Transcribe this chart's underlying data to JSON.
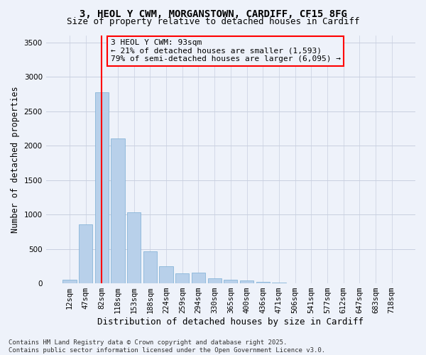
{
  "title_line1": "3, HEOL Y CWM, MORGANSTOWN, CARDIFF, CF15 8FG",
  "title_line2": "Size of property relative to detached houses in Cardiff",
  "xlabel": "Distribution of detached houses by size in Cardiff",
  "ylabel": "Number of detached properties",
  "categories": [
    "12sqm",
    "47sqm",
    "82sqm",
    "118sqm",
    "153sqm",
    "188sqm",
    "224sqm",
    "259sqm",
    "294sqm",
    "330sqm",
    "365sqm",
    "400sqm",
    "436sqm",
    "471sqm",
    "506sqm",
    "541sqm",
    "577sqm",
    "612sqm",
    "647sqm",
    "683sqm",
    "718sqm"
  ],
  "values": [
    55,
    855,
    2780,
    2105,
    1035,
    460,
    245,
    150,
    155,
    75,
    55,
    40,
    25,
    10,
    5,
    3,
    2,
    1,
    1,
    1,
    1
  ],
  "bar_color": "#b8d0ea",
  "bar_edgecolor": "#7aadd4",
  "vline_x": 2.0,
  "vline_color": "red",
  "annotation_line1": "3 HEOL Y CWM: 93sqm",
  "annotation_line2": "← 21% of detached houses are smaller (1,593)",
  "annotation_line3": "79% of semi-detached houses are larger (6,095) →",
  "annotation_box_color": "red",
  "ylim": [
    0,
    3600
  ],
  "yticks": [
    0,
    500,
    1000,
    1500,
    2000,
    2500,
    3000,
    3500
  ],
  "background_color": "#eef2fa",
  "grid_color": "#c8cfe0",
  "footnote": "Contains HM Land Registry data © Crown copyright and database right 2025.\nContains public sector information licensed under the Open Government Licence v3.0.",
  "title_fontsize": 10,
  "subtitle_fontsize": 9,
  "xlabel_fontsize": 9,
  "ylabel_fontsize": 8.5,
  "tick_fontsize": 7.5,
  "annotation_fontsize": 8,
  "footnote_fontsize": 6.5
}
